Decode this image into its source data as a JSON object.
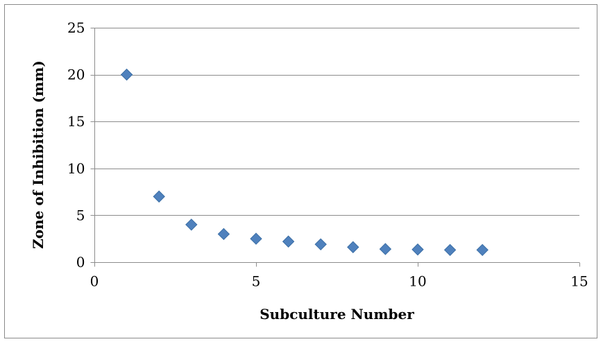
{
  "chart_data": {
    "type": "scatter",
    "title": "",
    "xlabel": "Subculture Number",
    "ylabel": "Zone of Inhibition (mm)",
    "xlim": [
      0,
      15
    ],
    "ylim": [
      0,
      25
    ],
    "x_ticks": [
      0,
      5,
      10,
      15
    ],
    "y_ticks": [
      0,
      5,
      10,
      15,
      20,
      25
    ],
    "grid": "horizontal",
    "legend": "none",
    "marker": "diamond",
    "marker_color": "#4f81bd",
    "series": [
      {
        "x": [
          1,
          2,
          3,
          4,
          5,
          6,
          7,
          8,
          9,
          10,
          11,
          12
        ],
        "y": [
          20,
          7,
          4,
          3,
          2.5,
          2.2,
          1.9,
          1.6,
          1.4,
          1.35,
          1.3,
          1.3
        ]
      }
    ]
  }
}
